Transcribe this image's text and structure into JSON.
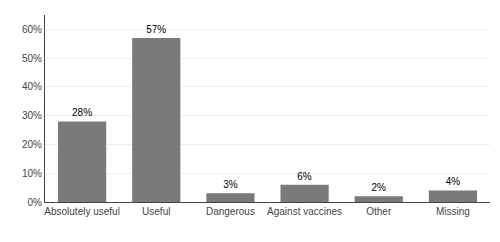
{
  "chart_data": {
    "type": "bar",
    "categories": [
      "Absolutely useful",
      "Useful",
      "Dangerous",
      "Against vaccines",
      "Other",
      "Missing"
    ],
    "values": [
      28,
      57,
      3,
      6,
      2,
      4
    ],
    "value_labels": [
      "28%",
      "57%",
      "3%",
      "6%",
      "2%",
      "4%"
    ],
    "data_labels": true,
    "color": "#7a7a7a",
    "ylim": [
      0,
      65
    ],
    "yticks": [
      {
        "value": 0,
        "label": "0%"
      },
      {
        "value": 10,
        "label": "10%"
      },
      {
        "value": 20,
        "label": "20%"
      },
      {
        "value": 30,
        "label": "30%"
      },
      {
        "value": 40,
        "label": "40%"
      },
      {
        "value": 50,
        "label": "50%"
      },
      {
        "value": 60,
        "label": "60%"
      }
    ],
    "grid": true
  }
}
